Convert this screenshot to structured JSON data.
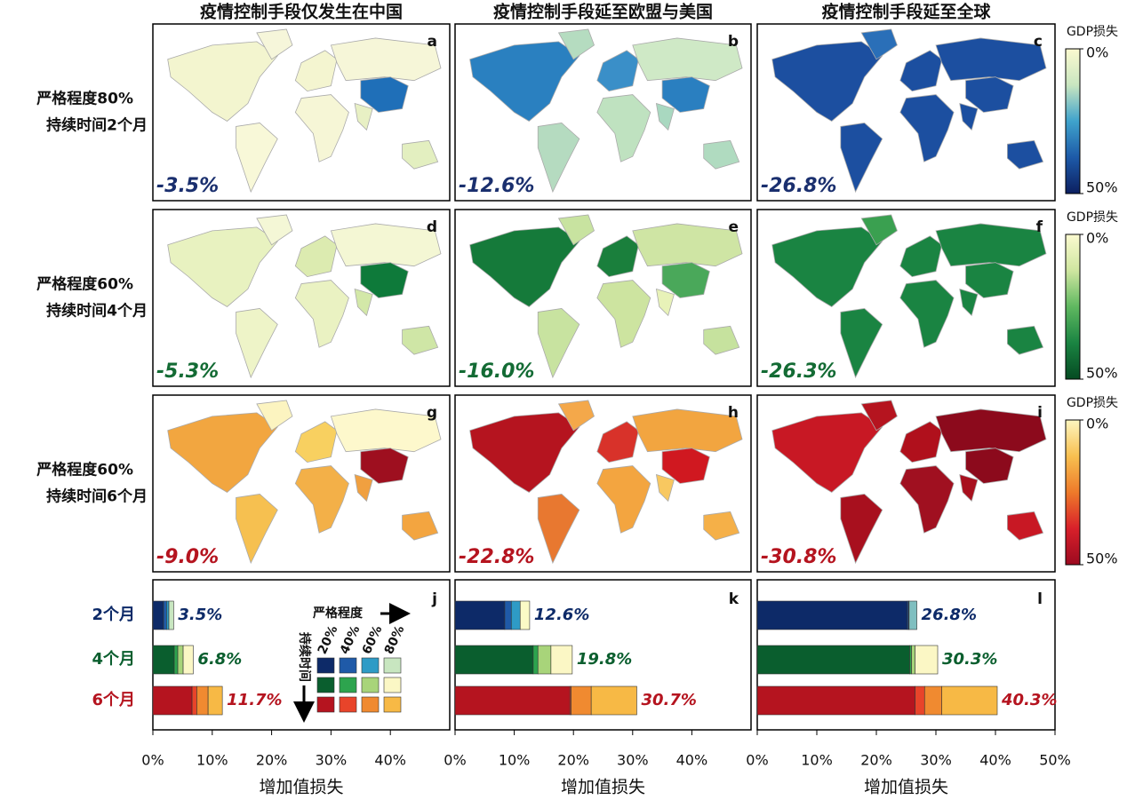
{
  "column_titles": [
    "疫情控制手段仅发生在中国",
    "疫情控制手段延至欧盟与美国",
    "疫情控制手段延至全球"
  ],
  "row_labels": [
    [
      "严格程度80%",
      "持续时间2个月"
    ],
    [
      "严格程度60%",
      "持续时间4个月"
    ],
    [
      "严格程度60%",
      "持续时间6个月"
    ]
  ],
  "colorbars": [
    {
      "title": "GDP损失",
      "ticks": [
        {
          "value": 0,
          "label": "0%"
        },
        {
          "value": 50,
          "label": "50%"
        }
      ],
      "colors": [
        "#fbfad0",
        "#c9e6c0",
        "#3fa3cc",
        "#1d5aa8",
        "#0c1f60"
      ],
      "text_color": "#1a2f6e"
    },
    {
      "title": "GDP损失",
      "ticks": [
        {
          "value": 0,
          "label": "0%"
        },
        {
          "value": 50,
          "label": "50%"
        }
      ],
      "colors": [
        "#fbfad0",
        "#cfe6a0",
        "#5fb860",
        "#1a8442",
        "#054a22"
      ],
      "text_color": "#136b34"
    },
    {
      "title": "GDP损失",
      "ticks": [
        {
          "value": 0,
          "label": "0%"
        },
        {
          "value": 50,
          "label": "50%"
        }
      ],
      "colors": [
        "#fdf6c0",
        "#f8c050",
        "#ee7a2a",
        "#d8202a",
        "#9c0a20"
      ],
      "text_color": "#b5141f"
    }
  ],
  "maps": [
    {
      "letter": "a",
      "label": "-3.5%",
      "region_colors": [
        "#f3f5cf",
        "#f6f6da",
        "#f8f8d8",
        "#f4f5d0",
        "#f6f6d6",
        "#f6f6d8",
        "#1f6fb8",
        "#e8f0c4",
        "#e3efc0"
      ]
    },
    {
      "letter": "b",
      "label": "-12.6%",
      "region_colors": [
        "#2a80c0",
        "#b5dcc0",
        "#b5dbc0",
        "#3a8fc8",
        "#bfe2c0",
        "#cfe9c6",
        "#2a7fc0",
        "#a9d8c0",
        "#b0dbc0"
      ]
    },
    {
      "letter": "c",
      "label": "-26.8%",
      "region_colors": [
        "#1c4fa0",
        "#2a6fb8",
        "#1c4fa0",
        "#1c4fa0",
        "#1c4fa0",
        "#1c4fa0",
        "#1c4fa0",
        "#1c4fa0",
        "#1c4fa0"
      ]
    },
    {
      "letter": "d",
      "label": "-5.3%",
      "region_colors": [
        "#e8f2c0",
        "#f4f7d6",
        "#eef4c8",
        "#dcebb0",
        "#eaf2c2",
        "#f4f7d4",
        "#0e7a3a",
        "#d3e8a8",
        "#cfe6a6"
      ]
    },
    {
      "letter": "e",
      "label": "-16.0%",
      "region_colors": [
        "#157a3a",
        "#c8e3a0",
        "#c8e3a0",
        "#1a7f3c",
        "#cde4a0",
        "#cfe5a4",
        "#4aa85a",
        "#e8f2b8",
        "#c6e29e"
      ]
    },
    {
      "letter": "f",
      "label": "-26.3%",
      "region_colors": [
        "#1a8442",
        "#3aa050",
        "#1a8442",
        "#1a8442",
        "#1a8442",
        "#1a8442",
        "#1a8442",
        "#1a8442",
        "#1a8442"
      ]
    },
    {
      "letter": "g",
      "label": "-9.0%",
      "region_colors": [
        "#f2a640",
        "#fcf4c0",
        "#f6c050",
        "#f8d060",
        "#f3b048",
        "#fdf8cc",
        "#9e0f1f",
        "#f0a040",
        "#f3a540"
      ]
    },
    {
      "letter": "h",
      "label": "-22.8%",
      "region_colors": [
        "#b5141f",
        "#f4a84a",
        "#e87830",
        "#d8322a",
        "#f3a540",
        "#f2a540",
        "#d01820",
        "#f8c860",
        "#f5b048"
      ]
    },
    {
      "letter": "i",
      "label": "-30.8%",
      "region_colors": [
        "#c81824",
        "#b5141f",
        "#a8101e",
        "#b0101c",
        "#a01020",
        "#8c0a1c",
        "#8c0a1c",
        "#a8101e",
        "#c81824"
      ]
    }
  ],
  "legend": {
    "x_title": "严格程度",
    "y_title": "持续时间"
  },
  "chart_data": [
    {
      "type": "bar",
      "letter": "j",
      "xlabel": "增加值损失",
      "categories": [
        "2个月",
        "4个月",
        "6个月"
      ],
      "series": [
        {
          "name": "20%",
          "values": [
            1.8,
            3.6,
            6.6
          ]
        },
        {
          "name": "40%",
          "values": [
            0.5,
            0.6,
            0.8
          ]
        },
        {
          "name": "60%",
          "values": [
            0.4,
            0.9,
            1.9
          ]
        },
        {
          "name": "80%",
          "values": [
            0.8,
            1.7,
            2.4
          ]
        }
      ],
      "category_colors": [
        [
          "#0d2a68",
          "#1f5aa8",
          "#2e9bc6",
          "#c8e6c0"
        ],
        [
          "#0a5e2e",
          "#2da44e",
          "#a8d47a",
          "#fbf7c5"
        ],
        [
          "#b5141f",
          "#e8442a",
          "#f08a30",
          "#f7b945"
        ]
      ],
      "totals": [
        3.5,
        6.8,
        11.7
      ],
      "total_labels": [
        "3.5%",
        "6.8%",
        "11.7%"
      ],
      "xlim": [
        0,
        50
      ],
      "xticks": [
        {
          "value": 0,
          "label": "0%"
        },
        {
          "value": 10,
          "label": "10%"
        },
        {
          "value": 20,
          "label": "20%"
        },
        {
          "value": 30,
          "label": "30%"
        },
        {
          "value": 40,
          "label": "40%"
        }
      ]
    },
    {
      "type": "bar",
      "letter": "k",
      "xlabel": "增加值损失",
      "categories": [
        "2个月",
        "4个月",
        "6个月"
      ],
      "series": [
        {
          "name": "20%",
          "values": [
            8.4,
            13.2,
            19.4
          ]
        },
        {
          "name": "40%",
          "values": [
            1.1,
            0.8,
            0.2
          ]
        },
        {
          "name": "60%",
          "values": [
            1.5,
            2.2,
            3.4
          ]
        },
        {
          "name": "80%",
          "values": [
            1.6,
            3.6,
            7.7
          ]
        }
      ],
      "category_colors": [
        [
          "#0d2a68",
          "#1f5aa8",
          "#2e9bc6",
          "#fbfac6"
        ],
        [
          "#0a5e2e",
          "#2da44e",
          "#a8d47a",
          "#fbf7c5"
        ],
        [
          "#b5141f",
          "#e8442a",
          "#f08a30",
          "#f7b945"
        ]
      ],
      "totals": [
        12.6,
        19.8,
        30.7
      ],
      "total_labels": [
        "12.6%",
        "19.8%",
        "30.7%"
      ],
      "xlim": [
        0,
        50
      ],
      "xticks": [
        {
          "value": 0,
          "label": "0%"
        },
        {
          "value": 10,
          "label": "10%"
        },
        {
          "value": 20,
          "label": "20%"
        },
        {
          "value": 30,
          "label": "30%"
        },
        {
          "value": 40,
          "label": "40%"
        }
      ]
    },
    {
      "type": "bar",
      "letter": "l",
      "xlabel": "增加值损失",
      "categories": [
        "2个月",
        "4个月",
        "6个月"
      ],
      "series": [
        {
          "name": "20%",
          "values": [
            25.2,
            25.6,
            26.5
          ]
        },
        {
          "name": "40%",
          "values": [
            0.2,
            0.3,
            1.6
          ]
        },
        {
          "name": "60%",
          "values": [
            0.1,
            0.6,
            2.9
          ]
        },
        {
          "name": "80%",
          "values": [
            1.3,
            3.8,
            9.3
          ]
        }
      ],
      "category_colors": [
        [
          "#0d2a68",
          "#1f5aa8",
          "#2e9bc6",
          "#7fbfc0"
        ],
        [
          "#0a5e2e",
          "#2da44e",
          "#a8d47a",
          "#fbf7c5"
        ],
        [
          "#b5141f",
          "#e8442a",
          "#f08a30",
          "#f7b945"
        ]
      ],
      "totals": [
        26.8,
        30.3,
        40.3
      ],
      "total_labels": [
        "26.8%",
        "30.3%",
        "40.3%"
      ],
      "xlim": [
        0,
        50
      ],
      "xticks": [
        {
          "value": 0,
          "label": "0%"
        },
        {
          "value": 10,
          "label": "10%"
        },
        {
          "value": 20,
          "label": "20%"
        },
        {
          "value": 30,
          "label": "30%"
        },
        {
          "value": 40,
          "label": "40%"
        },
        {
          "value": 50,
          "label": "50%"
        }
      ]
    }
  ]
}
